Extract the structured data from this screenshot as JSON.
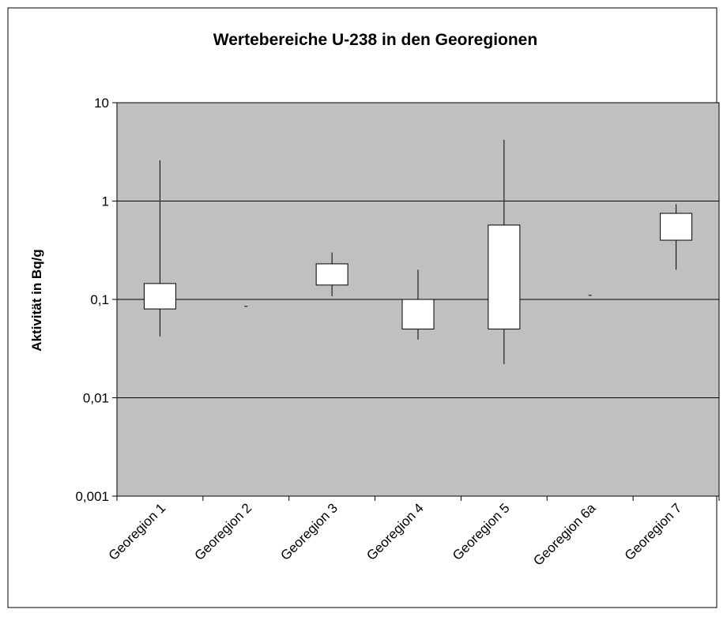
{
  "chart_data": {
    "type": "range-box",
    "title": "Wertebereiche U-238 in den Georegionen",
    "y_label": "Aktivität in Bq/g",
    "categories": [
      "Georegion 1",
      "Georegion 2",
      "Georegion 3",
      "Georegion 4",
      "Georegion 5",
      "Georegion 6a",
      "Georegion 7"
    ],
    "max": [
      2.6,
      0.085,
      0.3,
      0.2,
      4.2,
      0.11,
      0.93
    ],
    "min": [
      0.042,
      0.085,
      0.108,
      0.039,
      0.022,
      0.11,
      0.2
    ],
    "q_upper": [
      0.145,
      0.085,
      0.23,
      0.1,
      0.57,
      0.11,
      0.75
    ],
    "q_lower": [
      0.08,
      0.085,
      0.14,
      0.05,
      0.05,
      0.11,
      0.4
    ],
    "log_scale": true,
    "ylim": [
      0.001,
      10
    ],
    "yticks": [
      {
        "value": 0.001,
        "label": "0,001"
      },
      {
        "value": 0.01,
        "label": "0,01"
      },
      {
        "value": 0.1,
        "label": "0,1"
      },
      1,
      10
    ],
    "grid": true,
    "plot_color": "#c0c0c0",
    "box_color": "#ffffff"
  }
}
